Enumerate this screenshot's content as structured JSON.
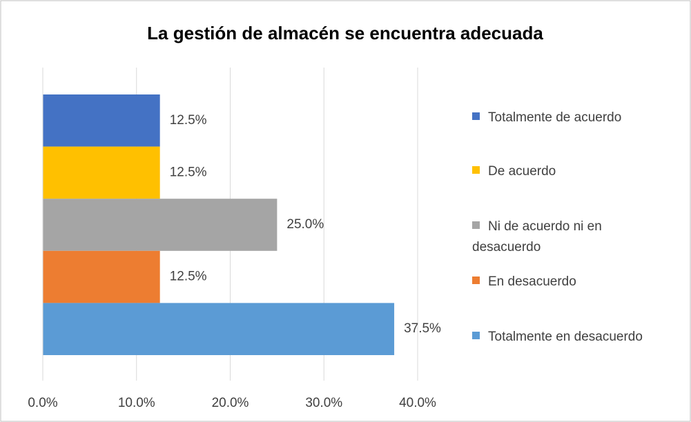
{
  "chart_data": {
    "type": "bar",
    "orientation": "horizontal",
    "title": "La gestión de almacén se encuentra adecuada",
    "series": [
      {
        "name": "Totalmente de acuerdo",
        "color": "#4472c4",
        "values": [
          12.5
        ],
        "value_labels": [
          "12.5%"
        ]
      },
      {
        "name": "De acuerdo",
        "color": "#ffc000",
        "values": [
          12.5
        ],
        "value_labels": [
          "12.5%"
        ]
      },
      {
        "name": "Ni de acuerdo ni en desacuerdo",
        "color": "#a5a5a5",
        "values": [
          25.0
        ],
        "value_labels": [
          "25.0%"
        ]
      },
      {
        "name": "En desacuerdo",
        "color": "#ed7d31",
        "values": [
          12.5
        ],
        "value_labels": [
          "12.5%"
        ]
      },
      {
        "name": "Totalmente en desacuerdo",
        "color": "#5b9bd5",
        "values": [
          37.5
        ],
        "value_labels": [
          "37.5%"
        ]
      }
    ],
    "xlim": [
      0,
      40
    ],
    "xticks": [
      {
        "value": 0,
        "label": "0.0%"
      },
      {
        "value": 10,
        "label": "10.0%"
      },
      {
        "value": 20,
        "label": "20.0%"
      },
      {
        "value": 30,
        "label": "30.0%"
      },
      {
        "value": 40,
        "label": "40.0%"
      }
    ],
    "grid": true,
    "legend": "right"
  }
}
